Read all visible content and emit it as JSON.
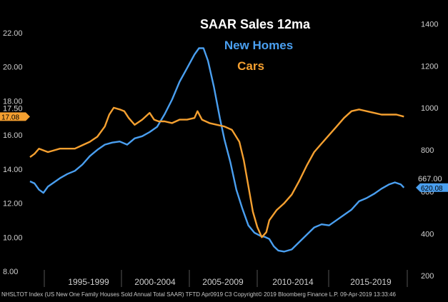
{
  "chart_data": {
    "type": "line",
    "title": "SAAR Sales 12ma",
    "x_tick_labels": [
      "1995-1999",
      "2000-2004",
      "2005-2009",
      "2010-2014",
      "2015-2019"
    ],
    "xlim": [
      1994.0,
      2019.8
    ],
    "left_axis": {
      "ticks": [
        "8.00",
        "10.00",
        "12.00",
        "14.00",
        "16.00",
        "18.00",
        "20.00",
        "22.00"
      ],
      "ylim": [
        7.5,
        23.0
      ]
    },
    "right_axis": {
      "ticks": [
        "200",
        "400",
        "600",
        "800",
        "1000",
        "1200",
        "1400"
      ],
      "ylim": [
        180,
        1440
      ]
    },
    "legend_placement": "top-center",
    "series": [
      {
        "name": "New Homes",
        "axis": "right",
        "color": "#4a9ff0",
        "last_value_label": "620.08",
        "points": [
          [
            1994.0,
            650
          ],
          [
            1994.3,
            640
          ],
          [
            1994.6,
            610
          ],
          [
            1994.9,
            595
          ],
          [
            1995.2,
            625
          ],
          [
            1995.6,
            645
          ],
          [
            1996.0,
            665
          ],
          [
            1996.5,
            685
          ],
          [
            1997.0,
            700
          ],
          [
            1997.5,
            730
          ],
          [
            1998.0,
            770
          ],
          [
            1998.5,
            800
          ],
          [
            1999.0,
            825
          ],
          [
            1999.5,
            835
          ],
          [
            2000.0,
            840
          ],
          [
            2000.5,
            825
          ],
          [
            2001.0,
            855
          ],
          [
            2001.5,
            865
          ],
          [
            2002.0,
            885
          ],
          [
            2002.5,
            910
          ],
          [
            2003.0,
            970
          ],
          [
            2003.5,
            1040
          ],
          [
            2004.0,
            1125
          ],
          [
            2004.5,
            1190
          ],
          [
            2005.0,
            1255
          ],
          [
            2005.3,
            1285
          ],
          [
            2005.6,
            1285
          ],
          [
            2005.9,
            1225
          ],
          [
            2006.3,
            1100
          ],
          [
            2006.7,
            950
          ],
          [
            2007.0,
            850
          ],
          [
            2007.4,
            740
          ],
          [
            2007.8,
            610
          ],
          [
            2008.2,
            520
          ],
          [
            2008.6,
            440
          ],
          [
            2009.0,
            405
          ],
          [
            2009.4,
            390
          ],
          [
            2009.7,
            385
          ],
          [
            2010.0,
            375
          ],
          [
            2010.3,
            340
          ],
          [
            2010.6,
            320
          ],
          [
            2011.0,
            315
          ],
          [
            2011.5,
            325
          ],
          [
            2012.0,
            360
          ],
          [
            2012.5,
            395
          ],
          [
            2013.0,
            430
          ],
          [
            2013.5,
            445
          ],
          [
            2014.0,
            440
          ],
          [
            2014.5,
            465
          ],
          [
            2015.0,
            490
          ],
          [
            2015.5,
            515
          ],
          [
            2016.0,
            555
          ],
          [
            2016.5,
            570
          ],
          [
            2017.0,
            590
          ],
          [
            2017.5,
            615
          ],
          [
            2018.0,
            635
          ],
          [
            2018.4,
            645
          ],
          [
            2018.8,
            635
          ],
          [
            2019.0,
            620
          ]
        ]
      },
      {
        "name": "Cars",
        "axis": "left",
        "color": "#f5a030",
        "last_value_label": "17.08",
        "points": [
          [
            1994.0,
            14.7
          ],
          [
            1994.3,
            14.9
          ],
          [
            1994.6,
            15.2
          ],
          [
            1994.9,
            15.1
          ],
          [
            1995.2,
            15.0
          ],
          [
            1995.6,
            15.1
          ],
          [
            1996.0,
            15.2
          ],
          [
            1996.5,
            15.2
          ],
          [
            1997.0,
            15.2
          ],
          [
            1997.5,
            15.4
          ],
          [
            1998.0,
            15.6
          ],
          [
            1998.5,
            15.9
          ],
          [
            1999.0,
            16.5
          ],
          [
            1999.3,
            17.2
          ],
          [
            1999.6,
            17.6
          ],
          [
            2000.0,
            17.5
          ],
          [
            2000.3,
            17.4
          ],
          [
            2000.6,
            17.0
          ],
          [
            2001.0,
            16.6
          ],
          [
            2001.5,
            16.9
          ],
          [
            2002.0,
            17.3
          ],
          [
            2002.3,
            16.9
          ],
          [
            2002.6,
            16.8
          ],
          [
            2003.0,
            16.8
          ],
          [
            2003.5,
            16.7
          ],
          [
            2004.0,
            16.9
          ],
          [
            2004.5,
            16.9
          ],
          [
            2005.0,
            17.0
          ],
          [
            2005.2,
            17.4
          ],
          [
            2005.5,
            16.9
          ],
          [
            2006.0,
            16.7
          ],
          [
            2006.5,
            16.6
          ],
          [
            2007.0,
            16.5
          ],
          [
            2007.5,
            16.3
          ],
          [
            2008.0,
            15.6
          ],
          [
            2008.3,
            14.5
          ],
          [
            2008.6,
            13.0
          ],
          [
            2008.9,
            11.5
          ],
          [
            2009.2,
            10.6
          ],
          [
            2009.5,
            10.0
          ],
          [
            2009.8,
            10.3
          ],
          [
            2010.0,
            11.0
          ],
          [
            2010.5,
            11.6
          ],
          [
            2011.0,
            12.0
          ],
          [
            2011.5,
            12.5
          ],
          [
            2012.0,
            13.3
          ],
          [
            2012.5,
            14.2
          ],
          [
            2013.0,
            15.0
          ],
          [
            2013.5,
            15.5
          ],
          [
            2014.0,
            16.0
          ],
          [
            2014.5,
            16.5
          ],
          [
            2015.0,
            17.0
          ],
          [
            2015.5,
            17.4
          ],
          [
            2016.0,
            17.5
          ],
          [
            2016.5,
            17.4
          ],
          [
            2017.0,
            17.3
          ],
          [
            2017.5,
            17.2
          ],
          [
            2018.0,
            17.2
          ],
          [
            2018.5,
            17.2
          ],
          [
            2019.0,
            17.08
          ]
        ]
      }
    ],
    "annotations": [
      "17.50",
      "667.00"
    ]
  },
  "footer": "NHSLTOT Index (US New One Family Houses Sold Annual Total SAAR) TFTD Apr0919 C3  Copyright© 2019 Bloomberg Finance L.P.  09-Apr-2019 13:33:46"
}
